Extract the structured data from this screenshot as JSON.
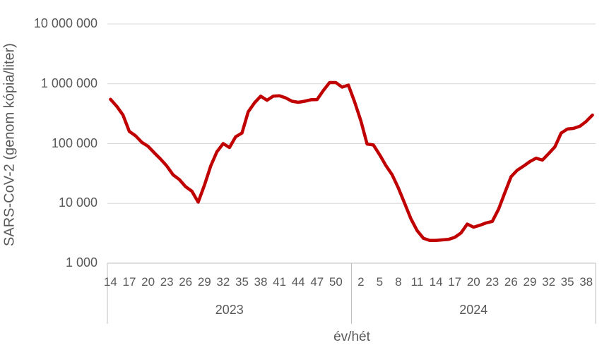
{
  "chart_data": {
    "type": "line",
    "title": "",
    "xlabel": "év/hét",
    "ylabel": "SARS-CoV-2 (genom kópia/liter)",
    "y_scale": "log",
    "ylim": [
      1000,
      10000000
    ],
    "y_ticks": [
      "10 000 000",
      "1 000 000",
      "100 000",
      "10 000",
      "1 000"
    ],
    "y_tick_values": [
      10000000,
      1000000,
      100000,
      10000,
      1000
    ],
    "grid": true,
    "legend": "none",
    "series_color": "#c00000",
    "grid_color": "#d9d9d9",
    "axis_color": "#bfbfbf",
    "text_color": "#595959",
    "groups": [
      {
        "year": "2023",
        "weeks": [
          14,
          15,
          16,
          17,
          18,
          19,
          20,
          21,
          22,
          23,
          24,
          25,
          26,
          27,
          28,
          29,
          30,
          31,
          32,
          33,
          34,
          35,
          36,
          37,
          38,
          39,
          40,
          41,
          42,
          43,
          44,
          45,
          46,
          47,
          48,
          49,
          50,
          51,
          52
        ],
        "tick_labels": [
          "14",
          "17",
          "20",
          "23",
          "26",
          "29",
          "32",
          "35",
          "38",
          "41",
          "44",
          "47",
          "50"
        ],
        "values": [
          550000,
          420000,
          300000,
          160000,
          135000,
          105000,
          90000,
          70000,
          55000,
          42000,
          30000,
          25000,
          19000,
          16000,
          10500,
          20000,
          42000,
          73000,
          100000,
          86000,
          130000,
          150000,
          340000,
          480000,
          620000,
          530000,
          620000,
          630000,
          580000,
          510000,
          490000,
          510000,
          540000,
          545000,
          770000,
          1050000,
          1050000,
          880000,
          950000
        ]
      },
      {
        "year": "2024",
        "weeks": [
          1,
          2,
          3,
          4,
          5,
          6,
          7,
          8,
          9,
          10,
          11,
          12,
          13,
          14,
          15,
          16,
          17,
          18,
          19,
          20,
          21,
          22,
          23,
          24,
          25,
          26,
          27,
          28,
          29,
          30,
          31,
          32,
          33,
          34,
          35,
          36,
          37,
          38,
          39
        ],
        "tick_labels": [
          "2",
          "5",
          "8",
          "11",
          "14",
          "17",
          "20",
          "23",
          "26",
          "29",
          "32",
          "35",
          "38"
        ],
        "values": [
          500000,
          240000,
          98000,
          95000,
          65000,
          43000,
          30000,
          18000,
          10000,
          5500,
          3500,
          2600,
          2400,
          2400,
          2450,
          2500,
          2700,
          3200,
          4500,
          4000,
          4300,
          4700,
          5000,
          8000,
          15000,
          28000,
          36000,
          42000,
          50000,
          57000,
          53000,
          68000,
          88000,
          150000,
          175000,
          180000,
          195000,
          235000,
          300000
        ]
      }
    ]
  }
}
